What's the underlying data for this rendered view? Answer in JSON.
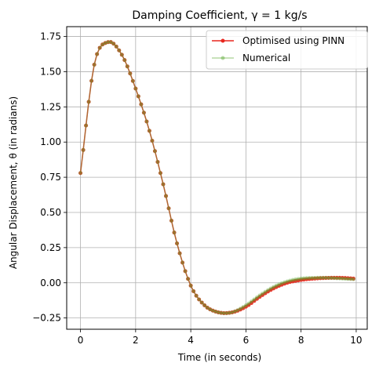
{
  "chart_data": {
    "type": "line",
    "title": "Damping Coefficient, γ = 1 kg/s",
    "xlabel": "Time (in seconds)",
    "ylabel": "Angular Displacement, θ (in radians)",
    "xlim": [
      -0.5,
      10.4
    ],
    "ylim": [
      -0.33,
      1.82
    ],
    "xticks": [
      0,
      2,
      4,
      6,
      8,
      10
    ],
    "xtick_labels": [
      "0",
      "2",
      "4",
      "6",
      "8",
      "10"
    ],
    "yticks": [
      -0.25,
      0.0,
      0.25,
      0.5,
      0.75,
      1.0,
      1.25,
      1.5,
      1.75
    ],
    "ytick_labels": [
      "−0.25",
      "0.00",
      "0.25",
      "0.50",
      "0.75",
      "1.00",
      "1.25",
      "1.50",
      "1.75"
    ],
    "grid": true,
    "legend_position": "top-right",
    "series": [
      {
        "name": "Optimised using PINN",
        "color": "#e8271e",
        "x": [
          0.0,
          0.5,
          1.0,
          1.5,
          2.0,
          2.5,
          3.0,
          3.5,
          4.0,
          4.5,
          5.0,
          5.5,
          6.0,
          6.5,
          7.0,
          7.5,
          8.0,
          8.5,
          9.0,
          9.5,
          9.9
        ],
        "y": [
          0.78,
          1.55,
          1.71,
          1.62,
          1.38,
          1.08,
          0.7,
          0.28,
          -0.02,
          -0.16,
          -0.21,
          -0.21,
          -0.17,
          -0.1,
          -0.04,
          0.0,
          0.02,
          0.03,
          0.035,
          0.035,
          0.03
        ]
      },
      {
        "name": "Numerical",
        "color": "#5aa832",
        "x": [
          0.0,
          0.5,
          1.0,
          1.5,
          2.0,
          2.5,
          3.0,
          3.5,
          4.0,
          4.5,
          5.0,
          5.5,
          6.0,
          6.5,
          7.0,
          7.5,
          8.0,
          8.5,
          9.0,
          9.5,
          9.9
        ],
        "y": [
          0.78,
          1.55,
          1.71,
          1.62,
          1.38,
          1.08,
          0.7,
          0.28,
          -0.02,
          -0.16,
          -0.21,
          -0.21,
          -0.16,
          -0.09,
          -0.03,
          0.01,
          0.03,
          0.035,
          0.035,
          0.03,
          0.025
        ]
      }
    ]
  }
}
